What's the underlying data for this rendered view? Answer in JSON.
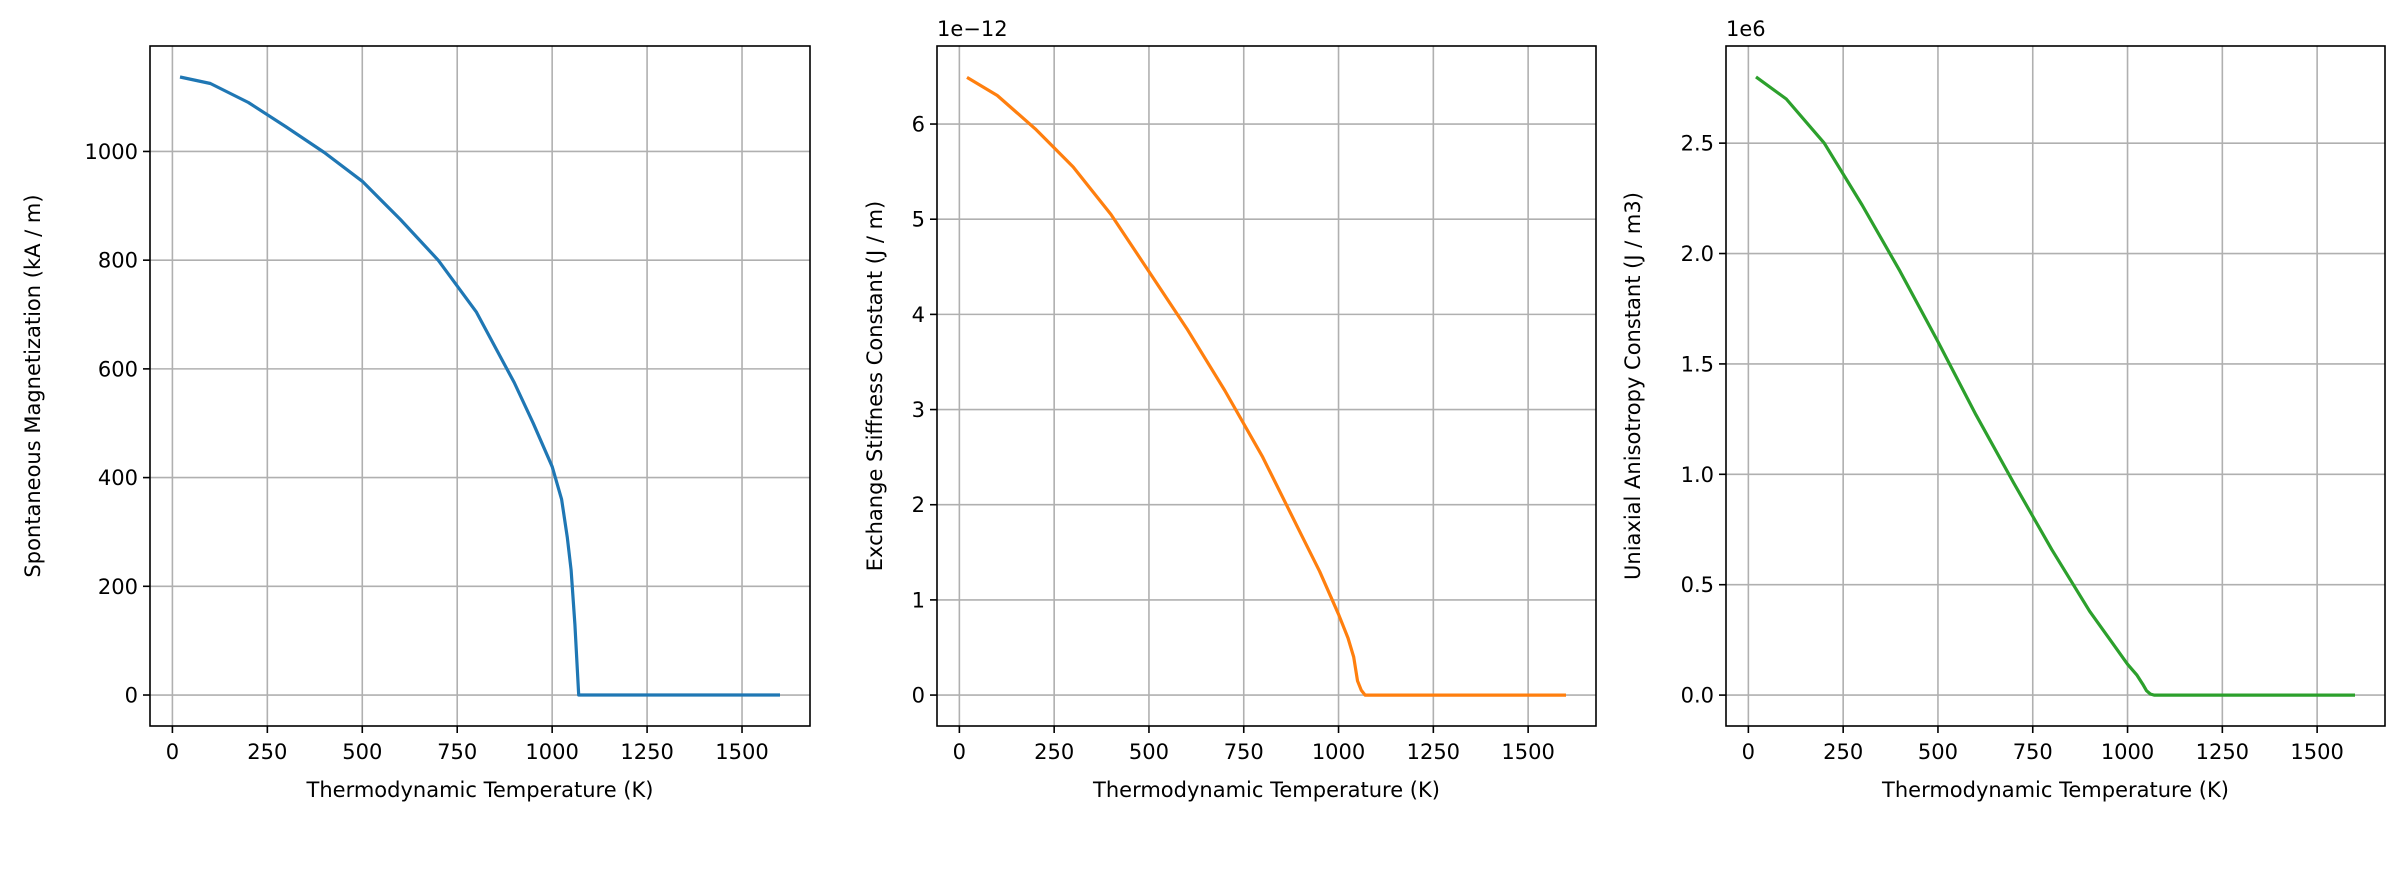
{
  "chart_data": [
    {
      "type": "line",
      "title": "",
      "xlabel": "Thermodynamic Temperature (K)",
      "ylabel": "Spontaneous Magnetization (kA / m)",
      "offset_label": "",
      "xlim": [
        -59,
        1679
      ],
      "ylim": [
        -57,
        1194
      ],
      "xticks": [
        0,
        250,
        500,
        750,
        1000,
        1250,
        1500
      ],
      "xtick_labels": [
        "0",
        "250",
        "500",
        "750",
        "1000",
        "1250",
        "1500"
      ],
      "yticks": [
        0,
        200,
        400,
        600,
        800,
        1000
      ],
      "ytick_labels": [
        "0",
        "200",
        "400",
        "600",
        "800",
        "1000"
      ],
      "grid": true,
      "color": "#1f77b4",
      "x": [
        20,
        100,
        200,
        300,
        400,
        500,
        600,
        700,
        800,
        900,
        950,
        1000,
        1025,
        1040,
        1050,
        1060,
        1070,
        1100,
        1200,
        1300,
        1400,
        1500,
        1600
      ],
      "y": [
        1137,
        1125,
        1090,
        1045,
        998,
        945,
        875,
        800,
        705,
        575,
        500,
        420,
        360,
        290,
        230,
        130,
        0,
        0,
        0,
        0,
        0,
        0,
        0
      ]
    },
    {
      "type": "line",
      "title": "",
      "xlabel": "Thermodynamic Temperature (K)",
      "ylabel": "Exchange Stiffness Constant (J / m)",
      "offset_label": "1e−12",
      "xlim": [
        -59,
        1679
      ],
      "ylim": [
        -0.325,
        6.82
      ],
      "xticks": [
        0,
        250,
        500,
        750,
        1000,
        1250,
        1500
      ],
      "xtick_labels": [
        "0",
        "250",
        "500",
        "750",
        "1000",
        "1250",
        "1500"
      ],
      "yticks": [
        0,
        1,
        2,
        3,
        4,
        5,
        6
      ],
      "ytick_labels": [
        "0",
        "1",
        "2",
        "3",
        "4",
        "5",
        "6"
      ],
      "grid": true,
      "color": "#ff7f0e",
      "x": [
        20,
        100,
        200,
        300,
        400,
        500,
        600,
        700,
        800,
        900,
        950,
        1000,
        1025,
        1040,
        1050,
        1060,
        1070,
        1100,
        1200,
        1300,
        1400,
        1500,
        1600
      ],
      "y": [
        6.49,
        6.3,
        5.95,
        5.55,
        5.05,
        4.45,
        3.85,
        3.2,
        2.5,
        1.7,
        1.3,
        0.85,
        0.6,
        0.4,
        0.15,
        0.05,
        0,
        0,
        0,
        0,
        0,
        0,
        0
      ]
    },
    {
      "type": "line",
      "title": "",
      "xlabel": "Thermodynamic Temperature (K)",
      "ylabel": "Uniaxial Anisotropy Constant (J / m3)",
      "offset_label": "1e6",
      "xlim": [
        -59,
        1679
      ],
      "ylim": [
        -0.14,
        2.94
      ],
      "xticks": [
        0,
        250,
        500,
        750,
        1000,
        1250,
        1500
      ],
      "xtick_labels": [
        "0",
        "250",
        "500",
        "750",
        "1000",
        "1250",
        "1500"
      ],
      "yticks": [
        0,
        0.5,
        1.0,
        1.5,
        2.0,
        2.5
      ],
      "ytick_labels": [
        "0.0",
        "0.5",
        "1.0",
        "1.5",
        "2.0",
        "2.5"
      ],
      "grid": true,
      "color": "#2ca02c",
      "x": [
        20,
        100,
        200,
        300,
        400,
        500,
        600,
        700,
        800,
        900,
        950,
        1000,
        1025,
        1040,
        1050,
        1060,
        1070,
        1100,
        1200,
        1300,
        1400,
        1500,
        1600
      ],
      "y": [
        2.8,
        2.7,
        2.5,
        2.22,
        1.92,
        1.6,
        1.27,
        0.96,
        0.66,
        0.38,
        0.26,
        0.14,
        0.09,
        0.05,
        0.02,
        0.005,
        0,
        0,
        0,
        0,
        0,
        0,
        0
      ]
    }
  ]
}
